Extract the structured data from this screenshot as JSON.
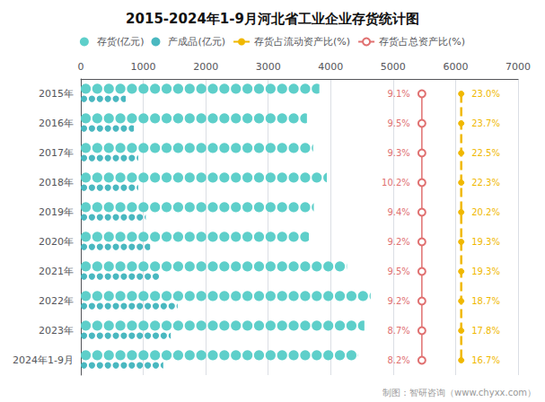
{
  "chart_data": {
    "type": "bar",
    "orientation": "horizontal",
    "title": "2015-2024年1-9月河北省工业企业存货统计图",
    "annotations": [
      "制图：智研咨询（www.chyxx.com）"
    ],
    "categories": [
      "2015年",
      "2016年",
      "2017年",
      "2018年",
      "2019年",
      "2020年",
      "2021年",
      "2022年",
      "2023年",
      "2024年1-9月"
    ],
    "series": [
      {
        "name": "存货(亿元)",
        "color": "#5ecfca",
        "marker": "circle",
        "values": [
          3819,
          3620,
          3720,
          3940,
          3730,
          3650,
          4260,
          4640,
          4540,
          4440
        ]
      },
      {
        "name": "产成品(亿元)",
        "color": "#4ab8c0",
        "marker": "circle",
        "values": [
          720,
          850,
          920,
          920,
          1040,
          1110,
          1250,
          1550,
          1440,
          1320
        ]
      },
      {
        "name": "存货占流动资产比(%)",
        "type": "line",
        "color": "#f0b800",
        "line_style": "dashed",
        "marker": "circle",
        "values": [
          23.0,
          23.7,
          22.5,
          22.3,
          20.2,
          19.3,
          19.3,
          18.7,
          17.8,
          16.7
        ],
        "value_labels": [
          "23.0%",
          "23.7%",
          "22.5%",
          "22.3%",
          "20.2%",
          "19.3%",
          "19.3%",
          "18.7%",
          "17.8%",
          "16.7%"
        ]
      },
      {
        "name": "存货占总资产比(%)",
        "type": "line",
        "color": "#e07070",
        "line_style": "solid",
        "marker": "open_circle",
        "values": [
          9.1,
          9.5,
          9.3,
          10.2,
          9.4,
          9.2,
          9.5,
          9.2,
          8.7,
          8.2
        ],
        "value_labels": [
          "9.1%",
          "9.5%",
          "9.3%",
          "10.2%",
          "9.4%",
          "9.2%",
          "9.5%",
          "9.2%",
          "8.7%",
          "8.2%"
        ]
      }
    ],
    "xlim": [
      0,
      7000
    ],
    "xticks": [
      0,
      1000,
      2000,
      3000,
      4000,
      5000,
      6000,
      7000
    ],
    "grid": true,
    "legend": "top"
  }
}
